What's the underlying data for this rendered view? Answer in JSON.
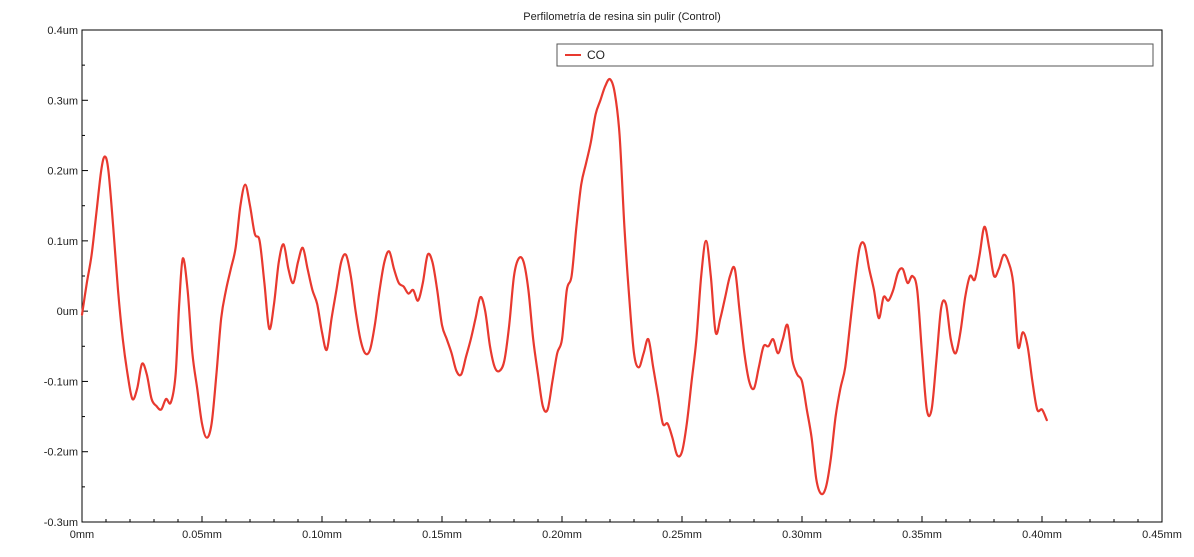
{
  "chart_data": {
    "type": "line",
    "title": "Perfilometría de resina sin pulir (Control)",
    "xlabel": "",
    "ylabel": "",
    "xlim": [
      0,
      0.45
    ],
    "ylim": [
      -0.3,
      0.4
    ],
    "x_unit": "mm",
    "y_unit": "um",
    "x_ticks": [
      {
        "value": 0,
        "label": "0mm"
      },
      {
        "value": 0.05,
        "label": "0.05mm"
      },
      {
        "value": 0.1,
        "label": "0.10mm"
      },
      {
        "value": 0.15,
        "label": "0.15mm"
      },
      {
        "value": 0.2,
        "label": "0.20mm"
      },
      {
        "value": 0.25,
        "label": "0.25mm"
      },
      {
        "value": 0.3,
        "label": "0.30mm"
      },
      {
        "value": 0.35,
        "label": "0.35mm"
      },
      {
        "value": 0.4,
        "label": "0.40mm"
      },
      {
        "value": 0.45,
        "label": "0.45mm"
      }
    ],
    "y_ticks": [
      {
        "value": 0.4,
        "label": "0.4um"
      },
      {
        "value": 0.3,
        "label": "0.3um"
      },
      {
        "value": 0.2,
        "label": "0.2um"
      },
      {
        "value": 0.1,
        "label": "0.1um"
      },
      {
        "value": 0,
        "label": "0um"
      },
      {
        "value": -0.1,
        "label": "-0.1um"
      },
      {
        "value": -0.2,
        "label": "-0.2um"
      },
      {
        "value": -0.3,
        "label": "-0.3um"
      }
    ],
    "grid": false,
    "legend_position": "top-right",
    "series": [
      {
        "name": "CO",
        "color": "#e8392f",
        "points": [
          [
            0.0,
            -0.005
          ],
          [
            0.002,
            0.04
          ],
          [
            0.004,
            0.08
          ],
          [
            0.006,
            0.14
          ],
          [
            0.008,
            0.2
          ],
          [
            0.0095,
            0.22
          ],
          [
            0.011,
            0.2
          ],
          [
            0.013,
            0.12
          ],
          [
            0.015,
            0.03
          ],
          [
            0.017,
            -0.04
          ],
          [
            0.019,
            -0.09
          ],
          [
            0.021,
            -0.125
          ],
          [
            0.023,
            -0.11
          ],
          [
            0.025,
            -0.075
          ],
          [
            0.027,
            -0.09
          ],
          [
            0.029,
            -0.125
          ],
          [
            0.031,
            -0.135
          ],
          [
            0.033,
            -0.14
          ],
          [
            0.035,
            -0.125
          ],
          [
            0.037,
            -0.13
          ],
          [
            0.039,
            -0.09
          ],
          [
            0.0405,
            0.01
          ],
          [
            0.042,
            0.075
          ],
          [
            0.044,
            0.03
          ],
          [
            0.046,
            -0.06
          ],
          [
            0.048,
            -0.11
          ],
          [
            0.05,
            -0.16
          ],
          [
            0.052,
            -0.18
          ],
          [
            0.054,
            -0.16
          ],
          [
            0.056,
            -0.09
          ],
          [
            0.058,
            -0.01
          ],
          [
            0.06,
            0.03
          ],
          [
            0.062,
            0.06
          ],
          [
            0.064,
            0.09
          ],
          [
            0.066,
            0.15
          ],
          [
            0.068,
            0.18
          ],
          [
            0.07,
            0.15
          ],
          [
            0.072,
            0.11
          ],
          [
            0.074,
            0.1
          ],
          [
            0.076,
            0.04
          ],
          [
            0.078,
            -0.025
          ],
          [
            0.08,
            0.01
          ],
          [
            0.082,
            0.07
          ],
          [
            0.084,
            0.095
          ],
          [
            0.086,
            0.06
          ],
          [
            0.088,
            0.04
          ],
          [
            0.09,
            0.07
          ],
          [
            0.092,
            0.09
          ],
          [
            0.094,
            0.06
          ],
          [
            0.096,
            0.03
          ],
          [
            0.098,
            0.01
          ],
          [
            0.1,
            -0.03
          ],
          [
            0.102,
            -0.055
          ],
          [
            0.104,
            -0.01
          ],
          [
            0.106,
            0.03
          ],
          [
            0.108,
            0.07
          ],
          [
            0.11,
            0.08
          ],
          [
            0.112,
            0.05
          ],
          [
            0.114,
            0.0
          ],
          [
            0.116,
            -0.04
          ],
          [
            0.118,
            -0.06
          ],
          [
            0.12,
            -0.055
          ],
          [
            0.122,
            -0.02
          ],
          [
            0.124,
            0.03
          ],
          [
            0.126,
            0.07
          ],
          [
            0.128,
            0.085
          ],
          [
            0.13,
            0.06
          ],
          [
            0.132,
            0.04
          ],
          [
            0.134,
            0.035
          ],
          [
            0.136,
            0.025
          ],
          [
            0.138,
            0.03
          ],
          [
            0.14,
            0.015
          ],
          [
            0.142,
            0.04
          ],
          [
            0.144,
            0.08
          ],
          [
            0.146,
            0.07
          ],
          [
            0.148,
            0.03
          ],
          [
            0.15,
            -0.02
          ],
          [
            0.152,
            -0.04
          ],
          [
            0.154,
            -0.06
          ],
          [
            0.156,
            -0.085
          ],
          [
            0.158,
            -0.09
          ],
          [
            0.16,
            -0.065
          ],
          [
            0.162,
            -0.04
          ],
          [
            0.164,
            -0.01
          ],
          [
            0.166,
            0.02
          ],
          [
            0.168,
            0.0
          ],
          [
            0.17,
            -0.05
          ],
          [
            0.172,
            -0.08
          ],
          [
            0.174,
            -0.085
          ],
          [
            0.176,
            -0.07
          ],
          [
            0.178,
            -0.02
          ],
          [
            0.18,
            0.05
          ],
          [
            0.182,
            0.075
          ],
          [
            0.184,
            0.07
          ],
          [
            0.186,
            0.03
          ],
          [
            0.188,
            -0.04
          ],
          [
            0.19,
            -0.09
          ],
          [
            0.192,
            -0.135
          ],
          [
            0.194,
            -0.14
          ],
          [
            0.196,
            -0.1
          ],
          [
            0.198,
            -0.06
          ],
          [
            0.2,
            -0.04
          ],
          [
            0.202,
            0.03
          ],
          [
            0.204,
            0.05
          ],
          [
            0.206,
            0.12
          ],
          [
            0.208,
            0.18
          ],
          [
            0.21,
            0.21
          ],
          [
            0.212,
            0.24
          ],
          [
            0.214,
            0.28
          ],
          [
            0.216,
            0.3
          ],
          [
            0.218,
            0.32
          ],
          [
            0.22,
            0.33
          ],
          [
            0.222,
            0.31
          ],
          [
            0.224,
            0.25
          ],
          [
            0.226,
            0.12
          ],
          [
            0.228,
            0.02
          ],
          [
            0.23,
            -0.06
          ],
          [
            0.232,
            -0.08
          ],
          [
            0.234,
            -0.06
          ],
          [
            0.236,
            -0.04
          ],
          [
            0.238,
            -0.08
          ],
          [
            0.24,
            -0.12
          ],
          [
            0.242,
            -0.16
          ],
          [
            0.244,
            -0.16
          ],
          [
            0.246,
            -0.18
          ],
          [
            0.248,
            -0.205
          ],
          [
            0.25,
            -0.2
          ],
          [
            0.252,
            -0.16
          ],
          [
            0.254,
            -0.1
          ],
          [
            0.256,
            -0.04
          ],
          [
            0.258,
            0.05
          ],
          [
            0.26,
            0.1
          ],
          [
            0.262,
            0.05
          ],
          [
            0.264,
            -0.03
          ],
          [
            0.266,
            -0.01
          ],
          [
            0.268,
            0.02
          ],
          [
            0.27,
            0.05
          ],
          [
            0.272,
            0.06
          ],
          [
            0.274,
            0.0
          ],
          [
            0.276,
            -0.06
          ],
          [
            0.278,
            -0.1
          ],
          [
            0.28,
            -0.11
          ],
          [
            0.282,
            -0.08
          ],
          [
            0.284,
            -0.05
          ],
          [
            0.286,
            -0.05
          ],
          [
            0.288,
            -0.04
          ],
          [
            0.29,
            -0.06
          ],
          [
            0.292,
            -0.04
          ],
          [
            0.294,
            -0.02
          ],
          [
            0.296,
            -0.07
          ],
          [
            0.298,
            -0.09
          ],
          [
            0.3,
            -0.1
          ],
          [
            0.302,
            -0.14
          ],
          [
            0.304,
            -0.18
          ],
          [
            0.306,
            -0.24
          ],
          [
            0.308,
            -0.26
          ],
          [
            0.31,
            -0.25
          ],
          [
            0.312,
            -0.21
          ],
          [
            0.314,
            -0.15
          ],
          [
            0.316,
            -0.11
          ],
          [
            0.318,
            -0.08
          ],
          [
            0.32,
            -0.02
          ],
          [
            0.322,
            0.04
          ],
          [
            0.324,
            0.09
          ],
          [
            0.326,
            0.095
          ],
          [
            0.328,
            0.06
          ],
          [
            0.33,
            0.03
          ],
          [
            0.332,
            -0.01
          ],
          [
            0.334,
            0.02
          ],
          [
            0.336,
            0.015
          ],
          [
            0.338,
            0.03
          ],
          [
            0.34,
            0.055
          ],
          [
            0.342,
            0.06
          ],
          [
            0.344,
            0.04
          ],
          [
            0.346,
            0.05
          ],
          [
            0.348,
            0.03
          ],
          [
            0.35,
            -0.06
          ],
          [
            0.352,
            -0.14
          ],
          [
            0.354,
            -0.14
          ],
          [
            0.356,
            -0.07
          ],
          [
            0.358,
            0.005
          ],
          [
            0.36,
            0.01
          ],
          [
            0.362,
            -0.04
          ],
          [
            0.364,
            -0.06
          ],
          [
            0.366,
            -0.03
          ],
          [
            0.368,
            0.02
          ],
          [
            0.37,
            0.05
          ],
          [
            0.372,
            0.045
          ],
          [
            0.374,
            0.08
          ],
          [
            0.376,
            0.12
          ],
          [
            0.378,
            0.09
          ],
          [
            0.38,
            0.05
          ],
          [
            0.382,
            0.06
          ],
          [
            0.384,
            0.08
          ],
          [
            0.386,
            0.07
          ],
          [
            0.388,
            0.04
          ],
          [
            0.39,
            -0.05
          ],
          [
            0.392,
            -0.03
          ],
          [
            0.394,
            -0.05
          ],
          [
            0.396,
            -0.1
          ],
          [
            0.398,
            -0.14
          ],
          [
            0.4,
            -0.14
          ],
          [
            0.402,
            -0.155
          ]
        ]
      }
    ]
  }
}
